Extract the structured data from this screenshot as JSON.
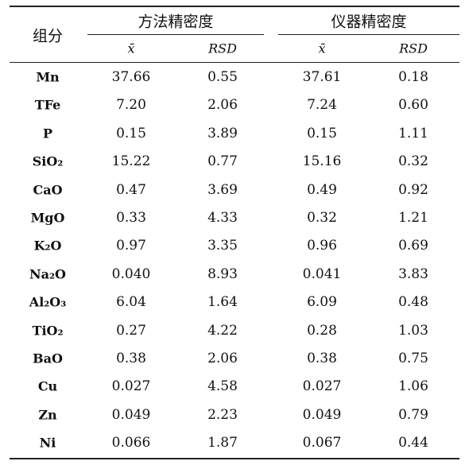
{
  "table": {
    "header": {
      "component": "组分"
    },
    "groups": [
      {
        "title": "方法精密度",
        "columns": [
          "x̄",
          "RSD"
        ]
      },
      {
        "title": "仪器精密度",
        "columns": [
          "x̄",
          "RSD"
        ]
      }
    ],
    "rows": [
      [
        "Mn",
        "37.66",
        "0.55",
        "37.61",
        "0.18"
      ],
      [
        "TFe",
        "7.20",
        "2.06",
        "7.24",
        "0.60"
      ],
      [
        "P",
        "0.15",
        "3.89",
        "0.15",
        "1.11"
      ],
      [
        "SiO₂",
        "15.22",
        "0.77",
        "15.16",
        "0.32"
      ],
      [
        "CaO",
        "0.47",
        "3.69",
        "0.49",
        "0.92"
      ],
      [
        "MgO",
        "0.33",
        "4.33",
        "0.32",
        "1.21"
      ],
      [
        "K₂O",
        "0.97",
        "3.35",
        "0.96",
        "0.69"
      ],
      [
        "Na₂O",
        "0.040",
        "8.93",
        "0.041",
        "3.83"
      ],
      [
        "Al₂O₃",
        "6.04",
        "1.64",
        "6.09",
        "0.48"
      ],
      [
        "TiO₂",
        "0.27",
        "4.22",
        "0.28",
        "1.03"
      ],
      [
        "BaO",
        "0.38",
        "2.06",
        "0.38",
        "0.75"
      ],
      [
        "Cu",
        "0.027",
        "4.58",
        "0.027",
        "1.06"
      ],
      [
        "Zn",
        "0.049",
        "2.23",
        "0.049",
        "0.79"
      ],
      [
        "Ni",
        "0.066",
        "1.87",
        "0.067",
        "0.44"
      ]
    ]
  }
}
